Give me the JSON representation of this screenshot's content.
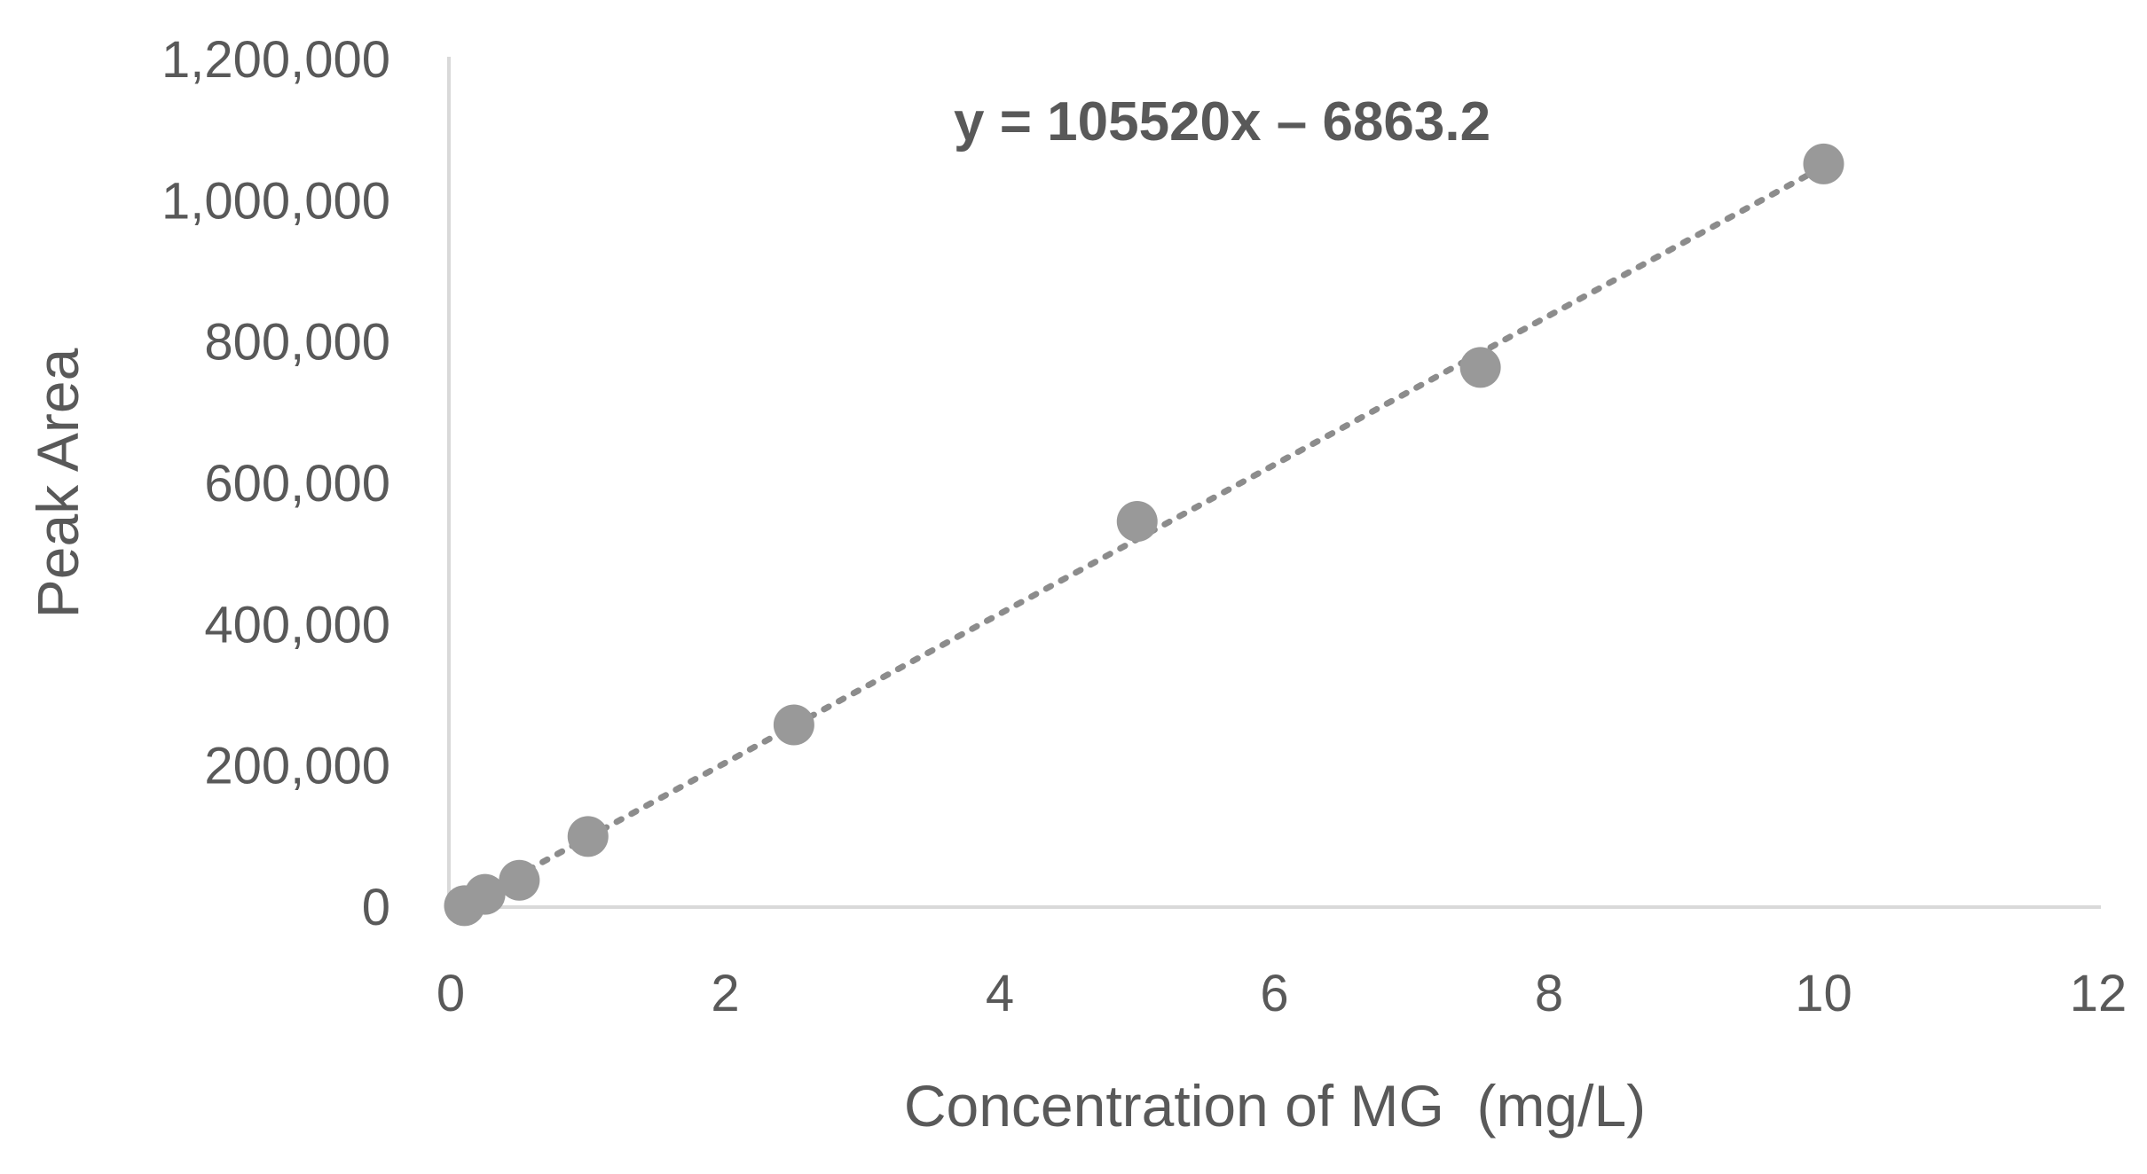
{
  "chart_data": {
    "type": "scatter",
    "xlabel": "Concentration of MG  (mg/L)",
    "ylabel": "Peak Area",
    "xlim": [
      0,
      12
    ],
    "ylim": [
      0,
      1200000
    ],
    "x_ticks": [
      0,
      2,
      4,
      6,
      8,
      10,
      12
    ],
    "y_ticks": [
      0,
      200000,
      400000,
      600000,
      800000,
      1000000,
      1200000
    ],
    "x_tick_labels": [
      "0",
      "2",
      "4",
      "6",
      "8",
      "10",
      "12"
    ],
    "y_tick_labels": [
      "0",
      "200,000",
      "400,000",
      "600,000",
      "800,000",
      "1,000,000",
      "1,200,000"
    ],
    "grid": false,
    "series": [
      {
        "x": [
          0.1,
          0.25,
          0.5,
          1,
          2.5,
          5,
          7.5,
          10
        ],
        "y": [
          2000,
          18000,
          38000,
          100000,
          258000,
          546000,
          764000,
          1052000
        ],
        "color": "#999999"
      }
    ],
    "trendline": {
      "style": "dotted",
      "slope": 105520,
      "intercept": -6863.2,
      "color": "#8c8c8c",
      "equation_label": "y = 105520x – 6863.2"
    },
    "axis_color": "#d9d9d9",
    "text_color": "#595959"
  }
}
